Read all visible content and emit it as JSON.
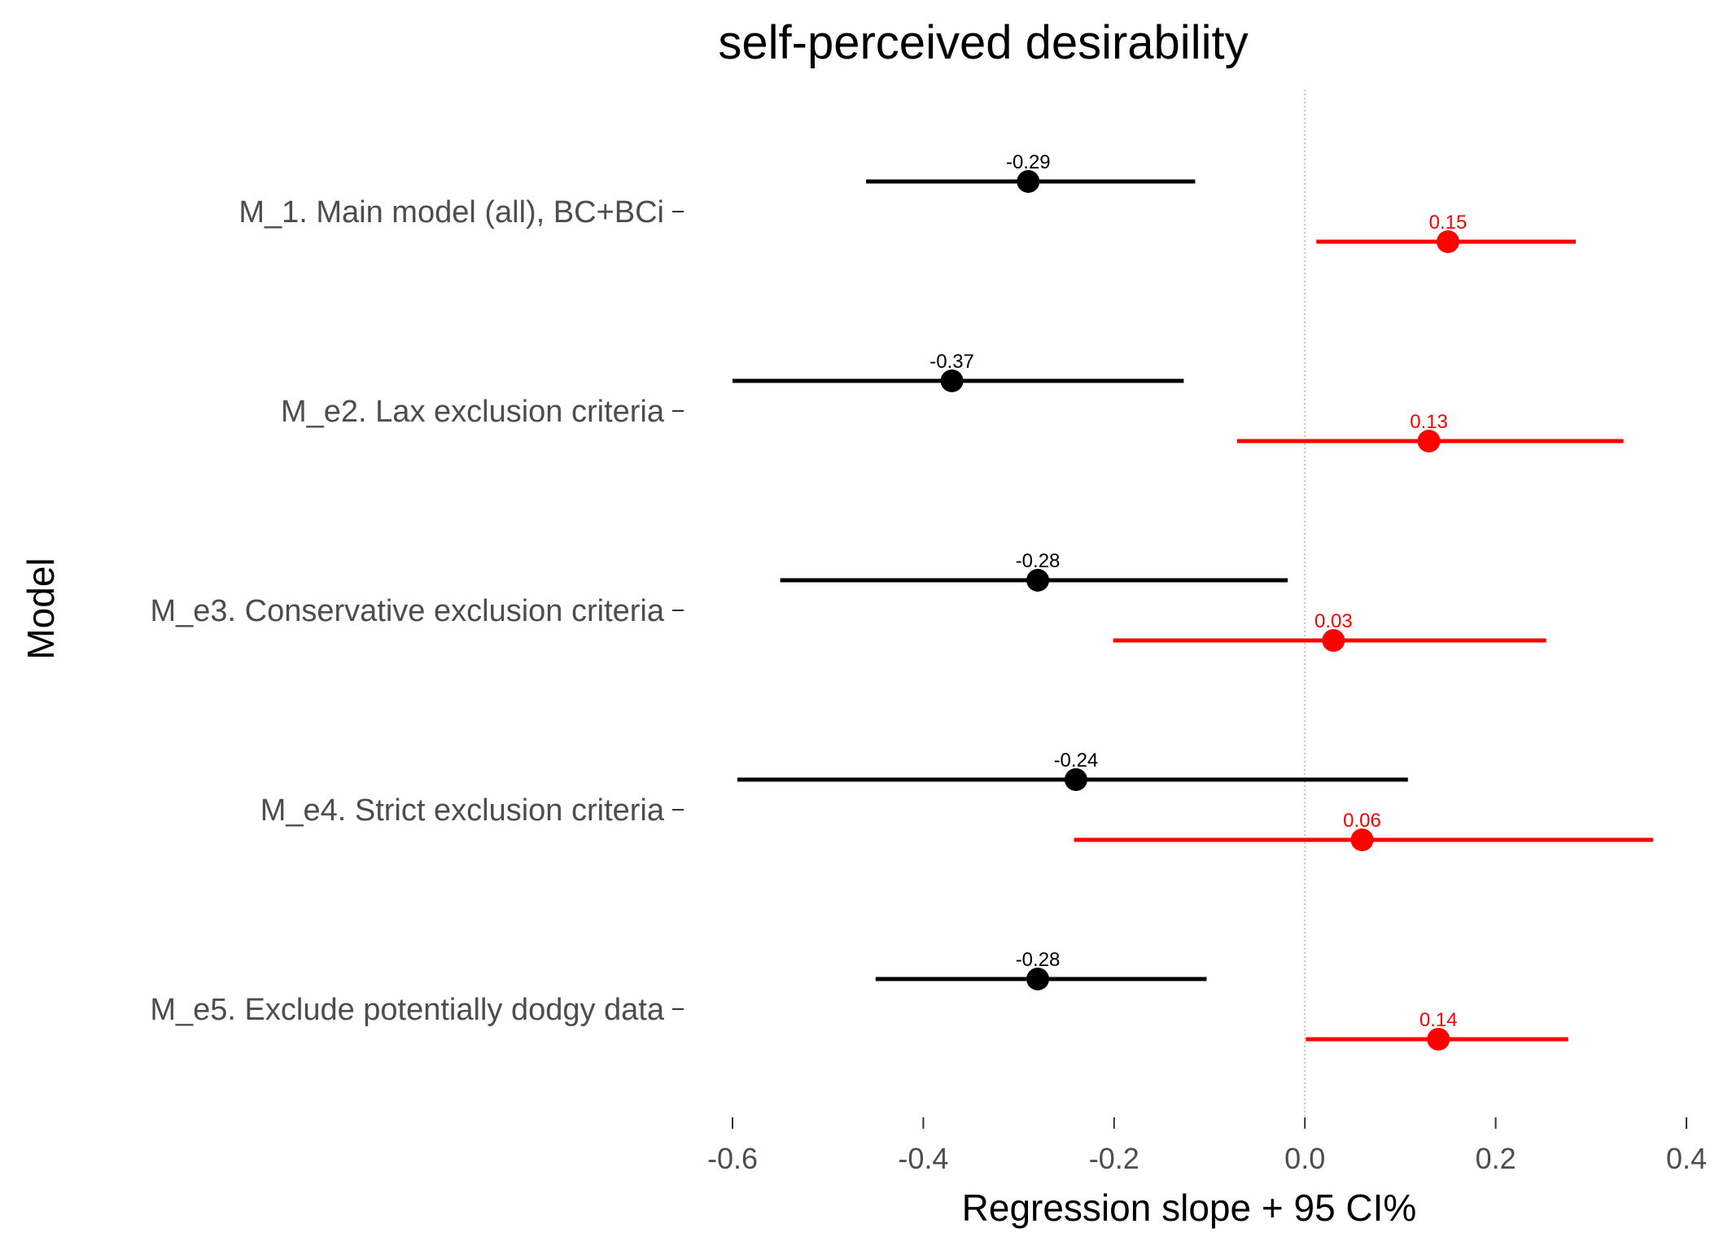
{
  "chart_data": {
    "type": "forest",
    "title": "self-perceived desirability",
    "xlabel": "Regression slope + 95 CI%",
    "ylabel": "Model",
    "xlim": [
      -0.6,
      0.4
    ],
    "xticks": [
      -0.6,
      -0.4,
      -0.2,
      0.0,
      0.2,
      0.4
    ],
    "xtick_labels": [
      "-0.6",
      "-0.4",
      "-0.2",
      "0.0",
      "0.2",
      "0.4"
    ],
    "reference_line": 0,
    "grid": false,
    "categories": [
      "M_1. Main model (all), BC+BCi",
      "M_e2. Lax exclusion criteria",
      "M_e3. Conservative exclusion criteria",
      "M_e4. Strict exclusion criteria",
      "M_e5. Exclude potentially dodgy data"
    ],
    "series": [
      {
        "color": "#000000",
        "estimates": [
          -0.29,
          -0.37,
          -0.28,
          -0.24,
          -0.28
        ],
        "ci_low": [
          -0.46,
          -0.6,
          -0.55,
          -0.595,
          -0.45
        ],
        "ci_high": [
          -0.115,
          -0.127,
          -0.018,
          0.108,
          -0.103
        ],
        "labels": [
          "-0.29",
          "-0.37",
          "-0.28",
          "-0.24",
          "-0.28"
        ]
      },
      {
        "color": "#ff0000",
        "estimates": [
          0.15,
          0.13,
          0.03,
          0.06,
          0.14
        ],
        "ci_low": [
          0.012,
          -0.071,
          -0.201,
          -0.242,
          0.001
        ],
        "ci_high": [
          0.284,
          0.334,
          0.253,
          0.365,
          0.276
        ],
        "labels": [
          "0.15",
          "0.13",
          "0.03",
          "0.06",
          "0.14"
        ]
      }
    ]
  }
}
